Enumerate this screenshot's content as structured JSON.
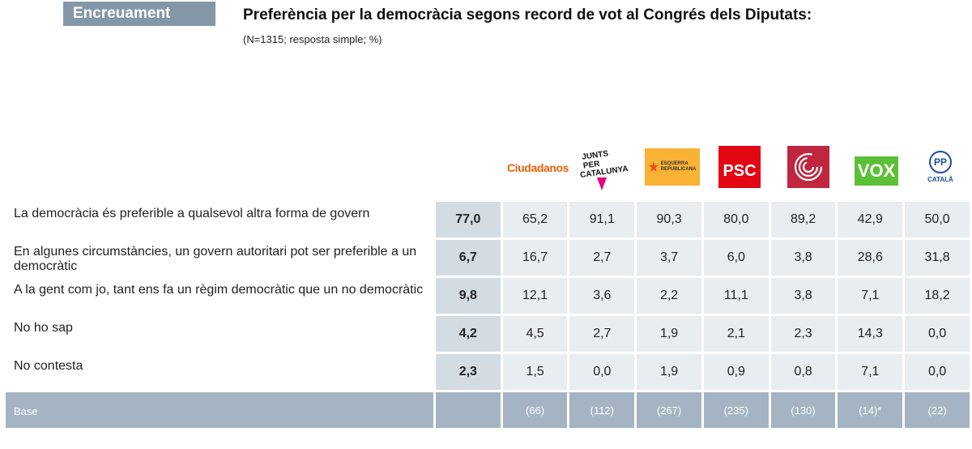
{
  "header": {
    "tag": "Encreuament",
    "title": "Preferència per la democràcia segons record de vot al Congrés dels Diputats:",
    "subtitle": "(N=1315; resposta simple; %)"
  },
  "logos": {
    "cs": "Ciudadanos",
    "junts_line1": "JUNTS PER",
    "junts_line2": "CATALUNYA",
    "erc_line1": "ESQUERRA",
    "erc_line2": "REPUBLICANA",
    "psc": "PSC",
    "vox": "VOX",
    "pp_mark": "PP",
    "pp_sub": "CATALÀ"
  },
  "rows": [
    {
      "label": "La democràcia és preferible a qualsevol altra forma de govern",
      "total": "77,0",
      "values": [
        "65,2",
        "91,1",
        "90,3",
        "80,0",
        "89,2",
        "42,9",
        "50,0"
      ]
    },
    {
      "label": "En algunes circumstàncies, un govern autoritari pot ser preferible a un democràtic",
      "total": "6,7",
      "values": [
        "16,7",
        "2,7",
        "3,7",
        "6,0",
        "3,8",
        "28,6",
        "31,8"
      ]
    },
    {
      "label": "A la gent com jo, tant ens fa un règim democràtic que un no democràtic",
      "total": "9,8",
      "values": [
        "12,1",
        "3,6",
        "2,2",
        "11,1",
        "3,8",
        "7,1",
        "18,2"
      ]
    },
    {
      "label": "No ho sap",
      "total": "4,2",
      "values": [
        "4,5",
        "2,7",
        "1,9",
        "2,1",
        "2,3",
        "14,3",
        "0,0"
      ]
    },
    {
      "label": "No contesta",
      "total": "2,3",
      "values": [
        "1,5",
        "0,0",
        "1,9",
        "0,9",
        "0,8",
        "7,1",
        "0,0"
      ]
    }
  ],
  "base": {
    "label": "Base",
    "total": "",
    "values": [
      "(66)",
      "(112)",
      "(267)",
      "(235)",
      "(130)",
      "(14)*",
      "(22)"
    ]
  }
}
